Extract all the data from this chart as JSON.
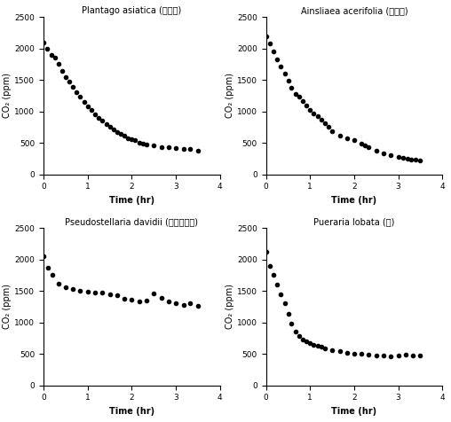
{
  "titles": [
    "Plantago asiatica (길경이)",
    "Ainsliaea acerifolia (단풍취)",
    "Pseudostellaria davidii (덕굴개별꾸)",
    "Pueraria lobata (쳡)"
  ],
  "ylabel": "CO₂ (ppm)",
  "xlabel": "Time (hr)",
  "xlim": [
    0,
    4.0
  ],
  "ylim": [
    0,
    2500
  ],
  "yticks": [
    0,
    500,
    1000,
    1500,
    2000,
    2500
  ],
  "xticks": [
    0.0,
    1.0,
    2.0,
    3.0,
    4.0
  ],
  "pr25_time": [
    0.0,
    0.08,
    0.17,
    0.25,
    0.33,
    0.42,
    0.5,
    0.58,
    0.67,
    0.75,
    0.83,
    0.92,
    1.0,
    1.08,
    1.17,
    1.25,
    1.33,
    1.42,
    1.5,
    1.58,
    1.67,
    1.75,
    1.83,
    1.92,
    2.0,
    2.08,
    2.17,
    2.25,
    2.33,
    2.5,
    2.67,
    2.83,
    3.0,
    3.17,
    3.33,
    3.5
  ],
  "pr25_co2": [
    2100,
    2000,
    1900,
    1850,
    1750,
    1650,
    1550,
    1480,
    1390,
    1310,
    1230,
    1150,
    1080,
    1020,
    960,
    900,
    850,
    800,
    750,
    710,
    670,
    640,
    610,
    580,
    560,
    540,
    510,
    490,
    480,
    460,
    440,
    430,
    420,
    410,
    400,
    380
  ],
  "pr26_time": [
    0.0,
    0.08,
    0.17,
    0.25,
    0.33,
    0.42,
    0.5,
    0.58,
    0.67,
    0.75,
    0.83,
    0.92,
    1.0,
    1.08,
    1.17,
    1.25,
    1.33,
    1.42,
    1.5,
    1.67,
    1.83,
    2.0,
    2.17,
    2.25,
    2.33,
    2.5,
    2.67,
    2.83,
    3.0,
    3.1,
    3.2,
    3.3,
    3.4,
    3.5
  ],
  "pr26_co2": [
    2190,
    2080,
    1950,
    1820,
    1720,
    1600,
    1490,
    1380,
    1280,
    1230,
    1170,
    1100,
    1020,
    970,
    920,
    870,
    810,
    750,
    680,
    620,
    580,
    550,
    490,
    460,
    430,
    370,
    340,
    310,
    280,
    260,
    250,
    240,
    230,
    220
  ],
  "pr27_time": [
    0.0,
    0.1,
    0.2,
    0.33,
    0.5,
    0.67,
    0.83,
    1.0,
    1.17,
    1.33,
    1.5,
    1.67,
    1.83,
    2.0,
    2.17,
    2.33,
    2.5,
    2.67,
    2.83,
    3.0,
    3.17,
    3.33,
    3.5
  ],
  "pr27_co2": [
    2050,
    1870,
    1750,
    1620,
    1560,
    1530,
    1500,
    1490,
    1480,
    1470,
    1450,
    1430,
    1380,
    1360,
    1330,
    1350,
    1460,
    1390,
    1340,
    1310,
    1280,
    1300,
    1260
  ],
  "pr28_time": [
    0.0,
    0.08,
    0.17,
    0.25,
    0.33,
    0.42,
    0.5,
    0.58,
    0.67,
    0.75,
    0.83,
    0.92,
    1.0,
    1.08,
    1.17,
    1.25,
    1.33,
    1.5,
    1.67,
    1.83,
    2.0,
    2.17,
    2.33,
    2.5,
    2.67,
    2.83,
    3.0,
    3.17,
    3.33,
    3.5
  ],
  "pr28_co2": [
    2120,
    1900,
    1750,
    1600,
    1450,
    1300,
    1130,
    980,
    860,
    780,
    730,
    700,
    670,
    650,
    630,
    610,
    590,
    560,
    540,
    520,
    510,
    500,
    490,
    480,
    475,
    465,
    480,
    490,
    480,
    475
  ]
}
